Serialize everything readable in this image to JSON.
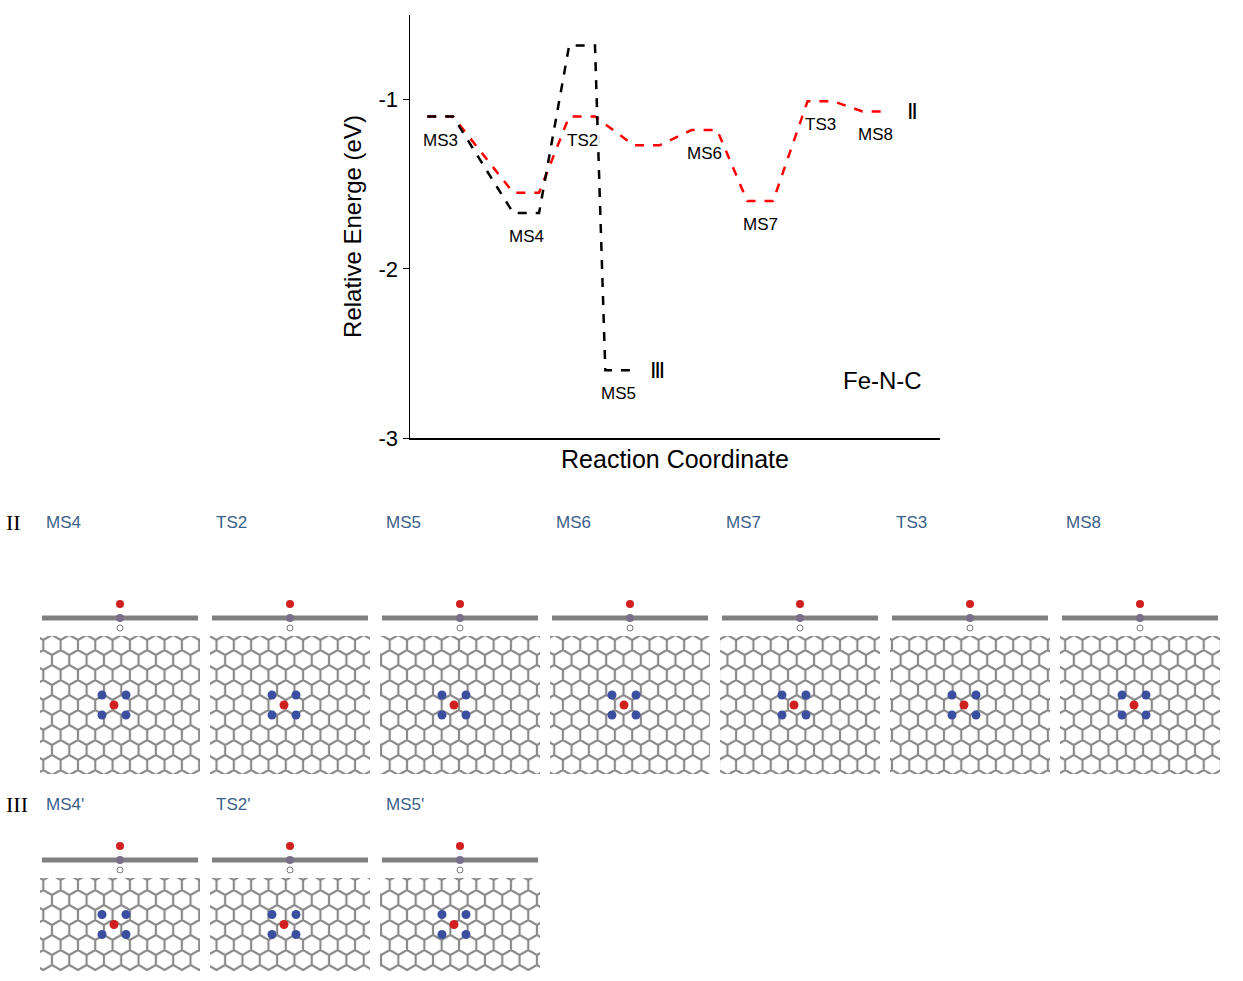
{
  "chart_data": {
    "type": "line",
    "x_label": "Reaction Coordinate",
    "y_label": "Relative Energe (eV)",
    "xlim": [
      -0.35,
      5.81
    ],
    "ylim": [
      -3,
      -0.5
    ],
    "yticks": [
      -3,
      -2,
      -1
    ],
    "tick_labels": "y",
    "grid": false,
    "line_style": "dashed",
    "annotation": "Fe-N-C",
    "series": [
      {
        "name": "Ⅱ",
        "color": "#ff0000",
        "x": [
          0,
          1,
          1.65,
          2.4,
          3.07,
          3.72,
          4.42,
          5.06
        ],
        "values": [
          -1.1,
          -1.55,
          -1.1,
          -1.27,
          -1.18,
          -1.6,
          -1.01,
          -1.07
        ],
        "point_labels": [
          "MS3",
          null,
          "TS2",
          null,
          "MS6",
          "MS7",
          "TS3",
          "MS8"
        ]
      },
      {
        "name": "Ⅲ",
        "color": "#000000",
        "x": [
          0,
          1,
          1.65,
          2.07
        ],
        "values": [
          -1.1,
          -1.67,
          -0.68,
          -2.6
        ],
        "point_labels": [
          null,
          "MS4",
          null,
          "MS5"
        ]
      }
    ]
  },
  "panels": [
    {
      "label": "II",
      "structures": [
        "MS4",
        "TS2",
        "MS5",
        "MS6",
        "MS7",
        "TS3",
        "MS8"
      ]
    },
    {
      "label": "III",
      "structures": [
        "MS4'",
        "TS2'",
        "MS5'"
      ]
    }
  ]
}
